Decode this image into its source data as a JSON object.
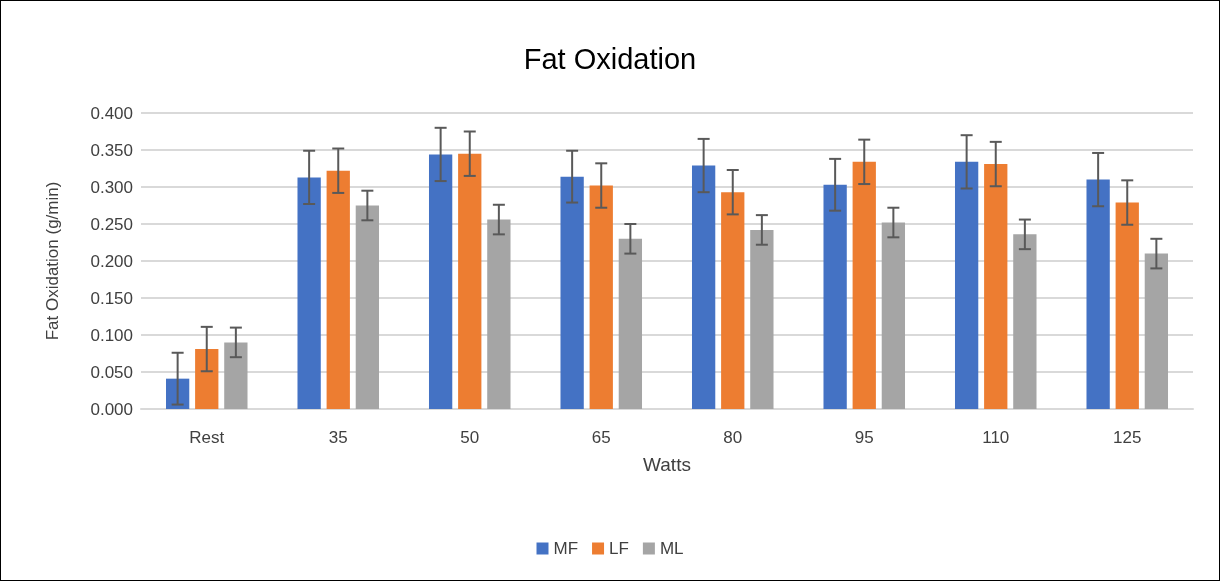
{
  "chart_data": {
    "type": "bar",
    "title": "Fat Oxidation",
    "xlabel": "Watts",
    "ylabel": "Fat Oxidation (g/min)",
    "categories": [
      "Rest",
      "35",
      "50",
      "65",
      "80",
      "95",
      "110",
      "125"
    ],
    "series": [
      {
        "name": "MF",
        "color": "#4472c4",
        "values": [
          0.041,
          0.313,
          0.344,
          0.314,
          0.329,
          0.303,
          0.334,
          0.31
        ],
        "errors": [
          0.035,
          0.036,
          0.036,
          0.035,
          0.036,
          0.035,
          0.036,
          0.036
        ]
      },
      {
        "name": "LF",
        "color": "#ed7d31",
        "values": [
          0.081,
          0.322,
          0.345,
          0.302,
          0.293,
          0.334,
          0.331,
          0.279
        ],
        "errors": [
          0.03,
          0.03,
          0.03,
          0.03,
          0.03,
          0.03,
          0.03,
          0.03
        ]
      },
      {
        "name": "ML",
        "color": "#a5a5a5",
        "values": [
          0.09,
          0.275,
          0.256,
          0.23,
          0.242,
          0.252,
          0.236,
          0.21
        ],
        "errors": [
          0.02,
          0.02,
          0.02,
          0.02,
          0.02,
          0.02,
          0.02,
          0.02
        ]
      }
    ],
    "ylim": [
      0,
      0.4
    ],
    "yticks": [
      {
        "value": 0,
        "label": "0.000"
      },
      {
        "value": 0.05,
        "label": "0.050"
      },
      {
        "value": 0.1,
        "label": "0.100"
      },
      {
        "value": 0.15,
        "label": "0.150"
      },
      {
        "value": 0.2,
        "label": "0.200"
      },
      {
        "value": 0.25,
        "label": "0.250"
      },
      {
        "value": 0.3,
        "label": "0.300"
      },
      {
        "value": 0.35,
        "label": "0.350"
      },
      {
        "value": 0.4,
        "label": "0.400"
      }
    ],
    "grid": "y",
    "legend": "bottom"
  }
}
